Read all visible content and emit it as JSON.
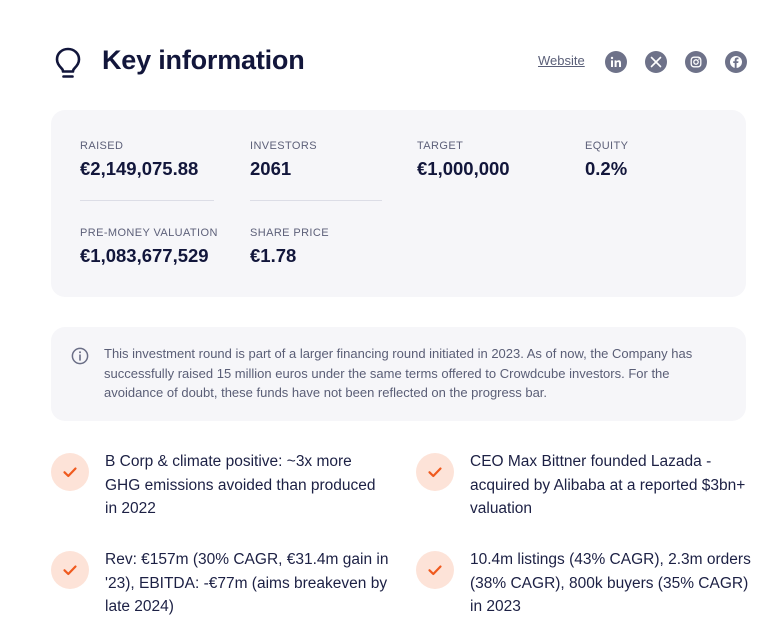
{
  "header": {
    "title": "Key information",
    "website_label": "Website",
    "social_icons": [
      "linkedin-icon",
      "x-icon",
      "instagram-icon",
      "facebook-icon"
    ]
  },
  "stats": [
    {
      "label": "RAISED",
      "value": "€2,149,075.88"
    },
    {
      "label": "INVESTORS",
      "value": "2061"
    },
    {
      "label": "TARGET",
      "value": "€1,000,000"
    },
    {
      "label": "EQUITY",
      "value": "0.2%"
    },
    {
      "label": "PRE-MONEY VALUATION",
      "value": "€1,083,677,529"
    },
    {
      "label": "SHARE PRICE",
      "value": "€1.78"
    }
  ],
  "notice": {
    "icon": "info-icon",
    "text": "This investment round is part of a larger financing round initiated in 2023. As of now, the Company has successfully raised 15 million euros under the same terms offered to Crowdcube investors. For the avoidance of doubt, these funds have not been reflected on the progress bar."
  },
  "highlights": [
    {
      "text": "B Corp & climate positive: ~3x more GHG emissions avoided than produced in 2022"
    },
    {
      "text": "CEO Max Bittner founded Lazada - acquired by Alibaba at a reported $3bn+ valuation"
    },
    {
      "text": "Rev: €157m (30% CAGR, €31.4m gain in '23), EBITDA: -€77m (aims breakeven by late 2024)"
    },
    {
      "text": "10.4m listings (43% CAGR), 2.3m orders (38% CAGR), 800k buyers (35% CAGR) in 2023"
    }
  ],
  "colors": {
    "heading": "#12163b",
    "panel_bg": "#f6f6f9",
    "check_bg": "#fde3d8",
    "check_mark": "#f05a1e",
    "social_bg": "#6e7289"
  }
}
